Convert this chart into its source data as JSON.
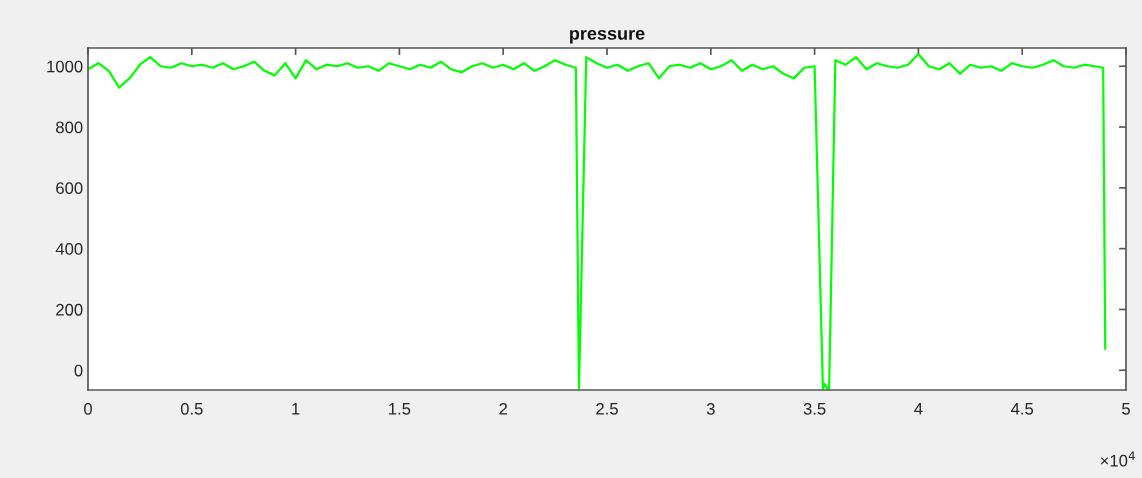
{
  "chart_data": {
    "type": "line",
    "title": "pressure",
    "series": [
      {
        "color": "#00ff00",
        "x": [
          0,
          0.05,
          0.1,
          0.15,
          0.2,
          0.25,
          0.3,
          0.35,
          0.4,
          0.45,
          0.5,
          0.55,
          0.6,
          0.65,
          0.7,
          0.75,
          0.8,
          0.85,
          0.9,
          0.95,
          1,
          1.05,
          1.1,
          1.15,
          1.2,
          1.25,
          1.3,
          1.35,
          1.4,
          1.45,
          1.5,
          1.55,
          1.6,
          1.65,
          1.7,
          1.75,
          1.8,
          1.85,
          1.9,
          1.95,
          2,
          2.05,
          2.1,
          2.15,
          2.2,
          2.25,
          2.3,
          2.35,
          2.365,
          2.4,
          2.45,
          2.5,
          2.55,
          2.6,
          2.65,
          2.7,
          2.75,
          2.8,
          2.85,
          2.9,
          2.95,
          3,
          3.05,
          3.1,
          3.15,
          3.2,
          3.25,
          3.3,
          3.35,
          3.4,
          3.45,
          3.5,
          3.54,
          3.55,
          3.56,
          3.57,
          3.6,
          3.65,
          3.7,
          3.75,
          3.8,
          3.85,
          3.9,
          3.95,
          4,
          4.05,
          4.1,
          4.15,
          4.2,
          4.25,
          4.3,
          4.35,
          4.4,
          4.45,
          4.5,
          4.55,
          4.6,
          4.65,
          4.7,
          4.75,
          4.8,
          4.85,
          4.89,
          4.9
        ],
        "values": [
          990,
          1010,
          985,
          930,
          960,
          1005,
          1030,
          1000,
          995,
          1010,
          1000,
          1005,
          995,
          1010,
          990,
          1000,
          1015,
          985,
          970,
          1010,
          960,
          1020,
          990,
          1005,
          1000,
          1010,
          995,
          1000,
          985,
          1010,
          1000,
          990,
          1005,
          995,
          1015,
          990,
          980,
          1000,
          1010,
          995,
          1005,
          990,
          1010,
          985,
          1000,
          1020,
          1005,
          995,
          -60,
          1030,
          1010,
          995,
          1005,
          985,
          1000,
          1010,
          960,
          1000,
          1005,
          995,
          1010,
          990,
          1000,
          1020,
          985,
          1005,
          990,
          1000,
          975,
          960,
          995,
          1000,
          -60,
          -45,
          -60,
          -60,
          1020,
          1005,
          1030,
          990,
          1010,
          1000,
          995,
          1005,
          1040,
          1000,
          990,
          1010,
          975,
          1005,
          995,
          1000,
          985,
          1010,
          1000,
          995,
          1005,
          1020,
          1000,
          995,
          1005,
          1000,
          995,
          70
        ]
      }
    ],
    "xlim": [
      0,
      5
    ],
    "ylim": [
      -65,
      1060
    ],
    "xticks": [
      0,
      0.5,
      1,
      1.5,
      2,
      2.5,
      3,
      3.5,
      4,
      4.5,
      5
    ],
    "yticks": [
      0,
      200,
      400,
      600,
      800,
      1000
    ],
    "annotations": [
      "×10$^{4}$"
    ]
  }
}
